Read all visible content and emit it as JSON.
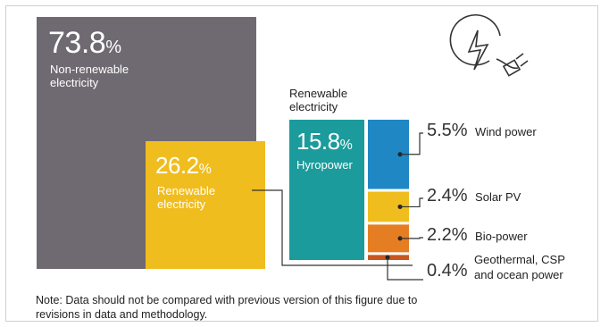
{
  "chart_data": {
    "type": "treemap",
    "categories": [
      "Non-renewable electricity",
      "Renewable electricity"
    ],
    "values": [
      73.8,
      26.2
    ],
    "blocks": [
      {
        "value": "73.8",
        "unit": "%",
        "label": "Non-renewable\nelectricity",
        "color": "#6f6a72"
      },
      {
        "value": "26.2",
        "unit": "%",
        "label": "Renewable\nelectricity",
        "color": "#f0bd1e"
      }
    ],
    "renewable_header": "Renewable\nelectricity",
    "breakdown": [
      {
        "name": "Hyropower",
        "value": 15.8,
        "value_text": "15.8",
        "color": "#1b9b9c"
      },
      {
        "name": "Wind power",
        "value": 5.5,
        "value_text": "5.5%",
        "color": "#1f87c4"
      },
      {
        "name": "Solar PV",
        "value": 2.4,
        "value_text": "2.4%",
        "color": "#f0bd1e"
      },
      {
        "name": "Bio-power",
        "value": 2.2,
        "value_text": "2.2%",
        "color": "#e57e22"
      },
      {
        "name": "Geothermal, CSP\nand ocean power",
        "value": 0.4,
        "value_text": "0.4%",
        "color": "#c9561f"
      }
    ],
    "hydro_unit": "%"
  },
  "note": "Note: Data should not be compared with previous version of this figure due to\nrevisions in data and methodology.",
  "icon": "electric-plug-icon",
  "colors": {
    "grey": "#6f6a72",
    "yellow": "#f0bd1e",
    "teal": "#1b9b9c",
    "blue": "#1f87c4",
    "orange": "#e57e22"
  }
}
